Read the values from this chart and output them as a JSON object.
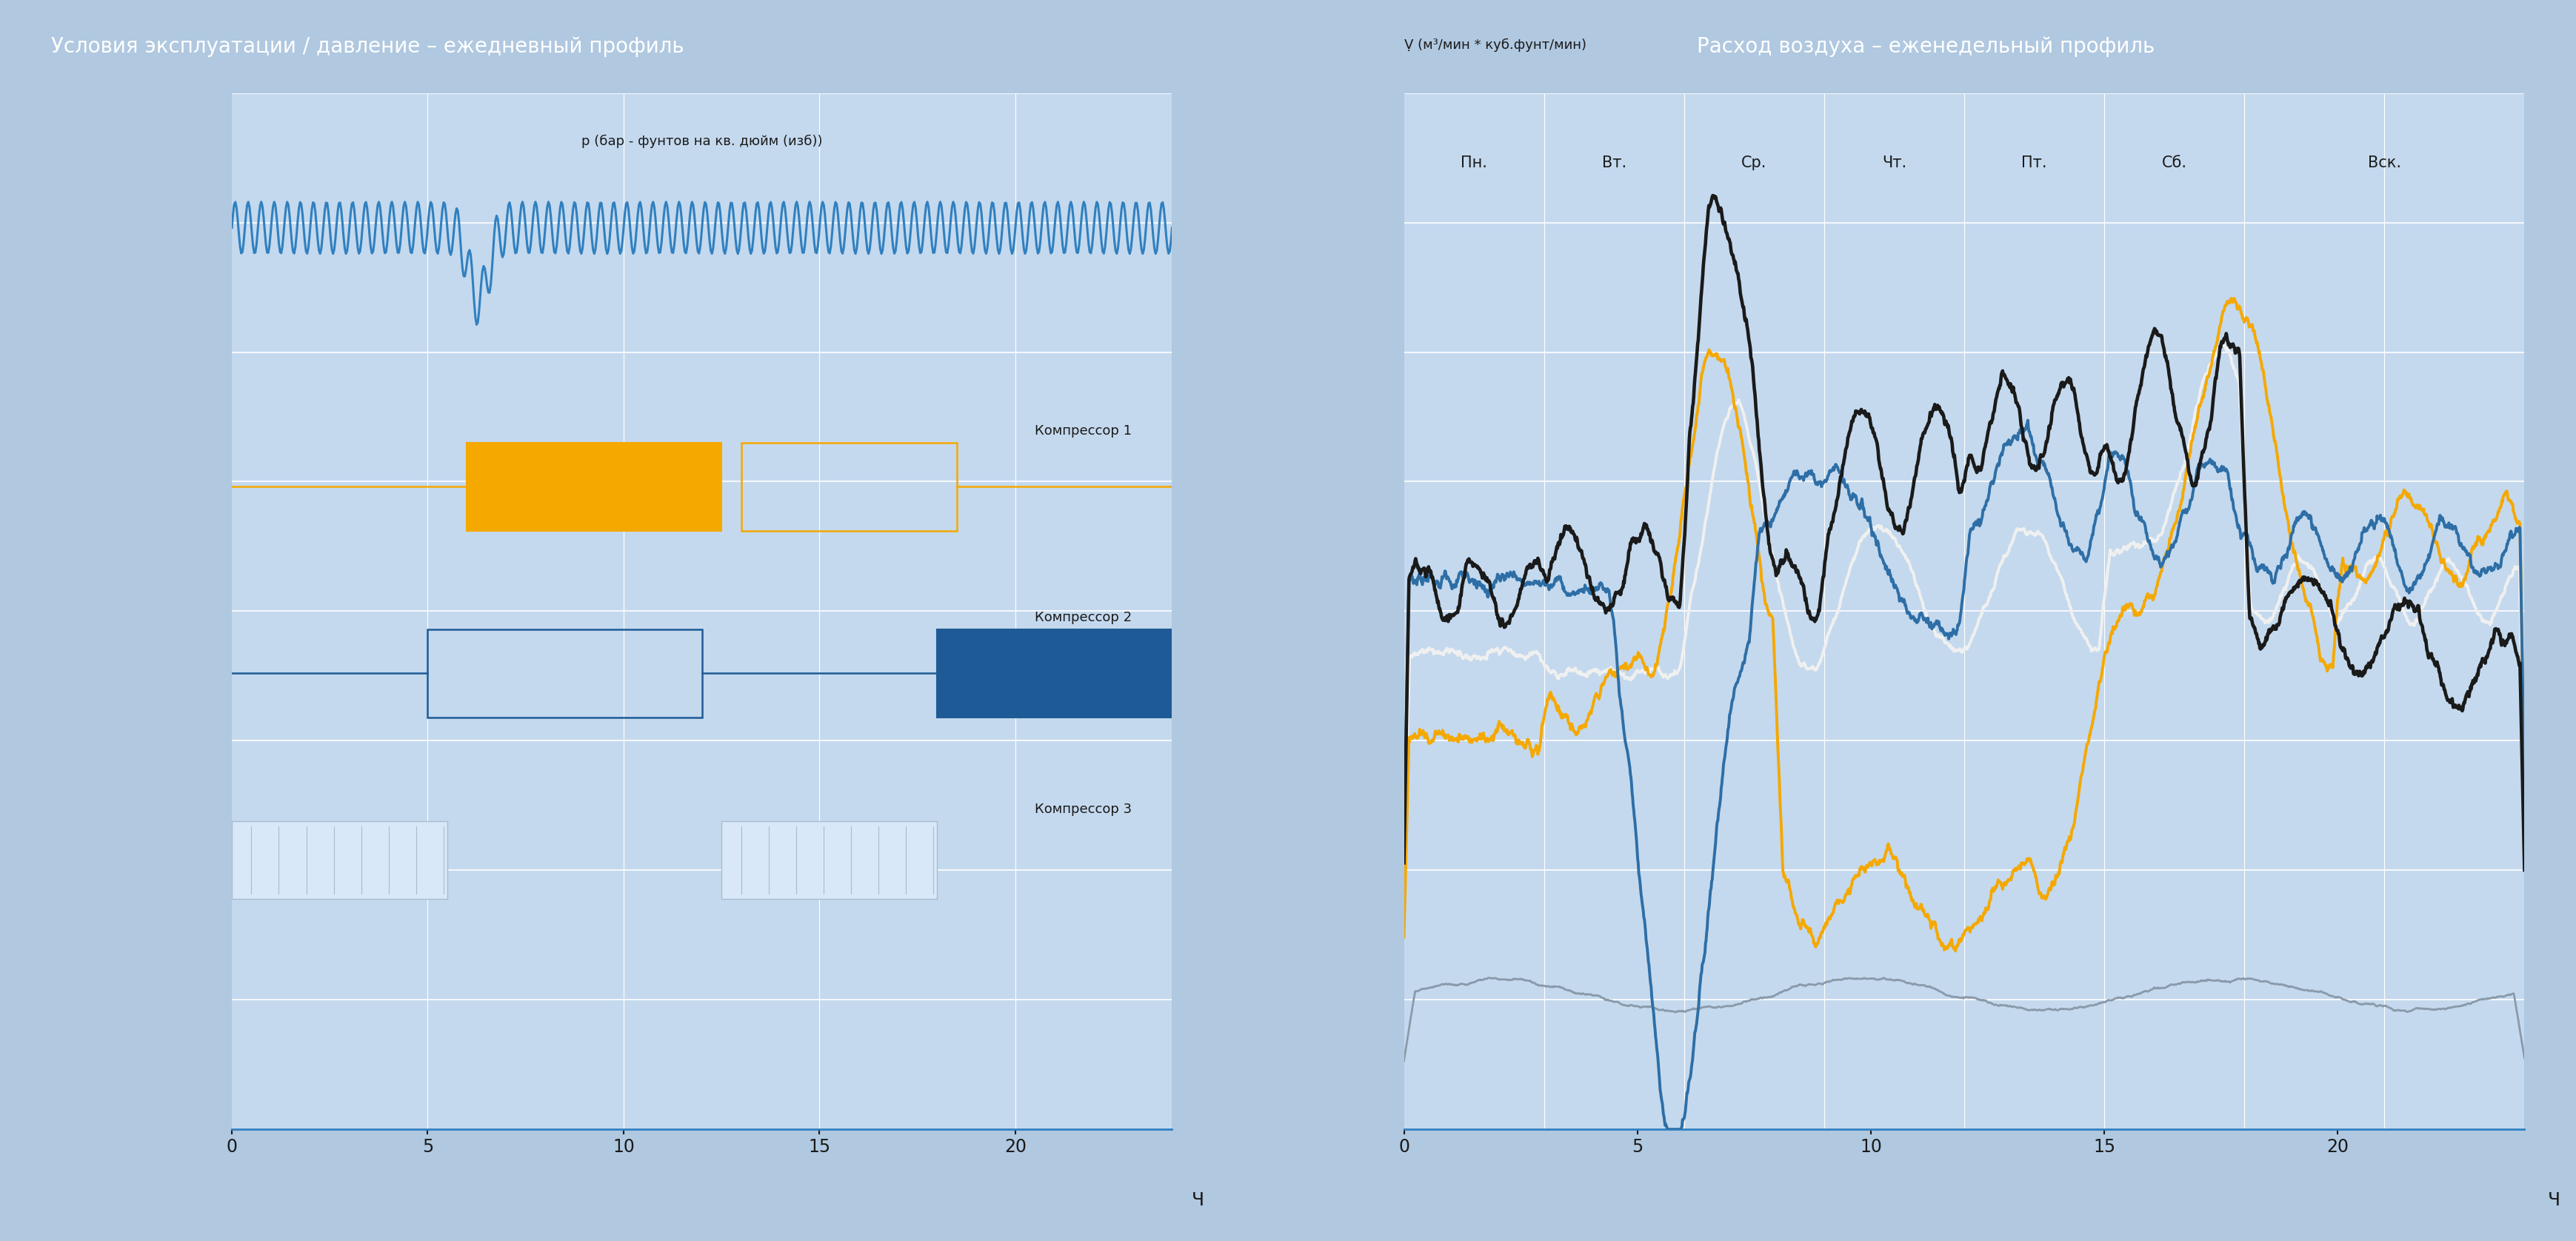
{
  "left_title": "Условия эксплуатации / давление – ежедневный профиль",
  "right_title": "Расход воздуха – еженедельный профиль",
  "left_ylabel": "р (бар - фунтов на кв. дюйм (изб))",
  "right_ylabel": "Ṿ (м³/мин * куб.фунт/мин)",
  "left_xlabel": "Ч",
  "right_xlabel": "Ч",
  "title_bg_color": "#2E6EA6",
  "title_text_color": "#FFFFFF",
  "plot_bg_color": "#C4D9EE",
  "outer_bg_color": "#B0C8E0",
  "grid_color": "#FFFFFF",
  "compressor_labels": [
    "Компрессор 1",
    "Компрессор 2",
    "Компрессор 3"
  ],
  "comp1_color": "#F5A800",
  "comp2_color": "#1E5A96",
  "comp3_color": "#E0EAF5",
  "left_xticks": [
    0,
    5,
    10,
    15,
    20
  ],
  "right_xticks": [
    0,
    5,
    10,
    15,
    20
  ],
  "day_labels": [
    "Пн.",
    "Вт.",
    "Ср.",
    "Чт.",
    "Пт.",
    "Сб.",
    "Вск."
  ],
  "line_colors": {
    "black": "#1A1A1A",
    "blue": "#2E6EA6",
    "orange": "#F5A800",
    "white": "#F0F0F0",
    "gray": "#8A9AAA"
  }
}
